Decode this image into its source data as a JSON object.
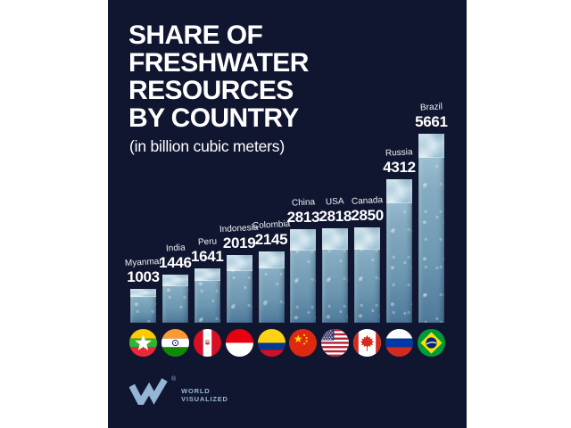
{
  "poster": {
    "title_lines": [
      "SHARE OF",
      "FRESHWATER",
      "RESOURCES",
      "BY COUNTRY"
    ],
    "subtitle": "(in billion cubic meters)"
  },
  "chart_data": {
    "type": "bar",
    "title": "Share of Freshwater Resources by Country",
    "unit_label": "(in billion cubic meters)",
    "categories": [
      "Myanmar",
      "India",
      "Peru",
      "Indonesia",
      "Colombia",
      "China",
      "USA",
      "Canada",
      "Russia",
      "Brazil"
    ],
    "values": [
      1003,
      1446,
      1641,
      2019,
      2145,
      2813,
      2818,
      2850,
      4312,
      5661
    ],
    "ylim": [
      0,
      5661
    ],
    "grid": false,
    "legend": "none",
    "bar_style": "water-photo texture, light crest at top, darker blue toward base",
    "flag_icons": [
      "flag-myanmar-icon",
      "flag-india-icon",
      "flag-peru-icon",
      "flag-indonesia-icon",
      "flag-colombia-icon",
      "flag-china-icon",
      "flag-usa-icon",
      "flag-canada-icon",
      "flag-russia-icon",
      "flag-brazil-icon"
    ]
  },
  "footer": {
    "logo_text_line1": "WORLD",
    "logo_text_line2": "VISUALIZED",
    "registered_mark": "®"
  },
  "colors": {
    "page_margin": "#ffffff",
    "poster_background": "#10162f",
    "text": "#ffffff",
    "bar_top": "#c3d9e4",
    "bar_bottom": "#4e7899",
    "logo_blue": "#95b5d6"
  }
}
